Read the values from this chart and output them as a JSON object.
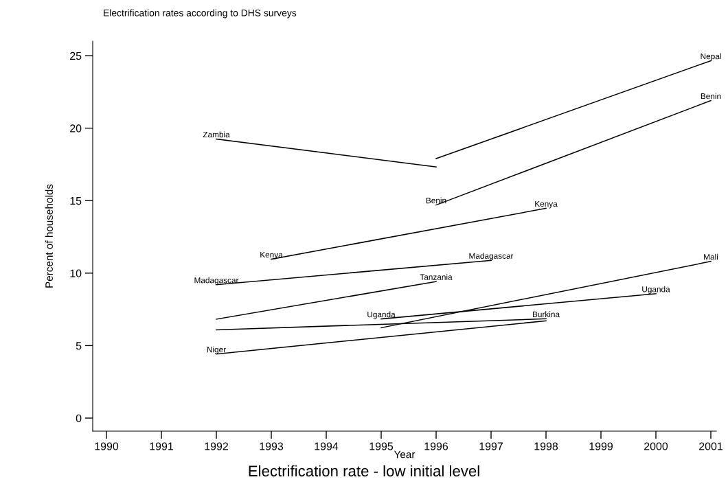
{
  "chart_data": {
    "type": "line",
    "title": "Electrification rate - low initial level",
    "subtitle": "Electrification rates according to DHS surveys",
    "xlabel": "Year",
    "ylabel": "Percent of households",
    "xlim": [
      1989.75,
      2001.1
    ],
    "xticks": [
      1990,
      1991,
      1992,
      1993,
      1994,
      1995,
      1996,
      1997,
      1998,
      1999,
      2000,
      2001
    ],
    "ylim": [
      -0.9,
      26
    ],
    "yticks": [
      0,
      5,
      10,
      15,
      20,
      25
    ],
    "grid": false,
    "marker": "none",
    "line_style": "solid",
    "series": [
      {
        "color": "#000000",
        "x": [
          1992,
          1996
        ],
        "values": [
          19.25,
          17.33
        ]
      },
      {
        "color": "#000000",
        "x": [
          1996,
          2001
        ],
        "values": [
          17.9,
          24.65
        ]
      },
      {
        "color": "#000000",
        "x": [
          1996,
          2001
        ],
        "values": [
          14.7,
          21.9
        ]
      },
      {
        "color": "#000000",
        "x": [
          1993,
          1998
        ],
        "values": [
          10.96,
          14.47
        ]
      },
      {
        "color": "#000000",
        "x": [
          1992,
          1997
        ],
        "values": [
          9.2,
          10.88
        ]
      },
      {
        "color": "#000000",
        "x": [
          1992,
          1996
        ],
        "values": [
          6.82,
          9.42
        ]
      },
      {
        "color": "#000000",
        "x": [
          1992,
          1998
        ],
        "values": [
          6.09,
          6.85
        ]
      },
      {
        "color": "#000000",
        "x": [
          1992,
          1998
        ],
        "values": [
          4.42,
          6.71
        ]
      },
      {
        "color": "#000000",
        "x": [
          1995,
          2000
        ],
        "values": [
          6.84,
          8.58
        ]
      },
      {
        "color": "#000000",
        "x": [
          1995,
          2001
        ],
        "values": [
          6.23,
          10.81
        ]
      }
    ],
    "annotations": [
      {
        "text": "Zambia",
        "x": 1992,
        "y": 19.25
      },
      {
        "text": "Nepal",
        "x": 2001,
        "y": 24.65
      },
      {
        "text": "Benin",
        "x": 1996,
        "y": 14.7
      },
      {
        "text": "Benin",
        "x": 2001,
        "y": 21.9
      },
      {
        "text": "Kenya",
        "x": 1993,
        "y": 10.96
      },
      {
        "text": "Kenya",
        "x": 1998,
        "y": 14.47
      },
      {
        "text": "Madagascar",
        "x": 1992,
        "y": 9.2
      },
      {
        "text": "Madagascar",
        "x": 1997,
        "y": 10.88
      },
      {
        "text": "Tanzania",
        "x": 1996,
        "y": 9.42
      },
      {
        "text": "Burkina",
        "x": 1998,
        "y": 6.85
      },
      {
        "text": "Niger",
        "x": 1992,
        "y": 4.42
      },
      {
        "text": "Uganda",
        "x": 1995,
        "y": 6.84
      },
      {
        "text": "Uganda",
        "x": 2000,
        "y": 8.58
      },
      {
        "text": "Mali",
        "x": 2001,
        "y": 10.81
      }
    ]
  }
}
